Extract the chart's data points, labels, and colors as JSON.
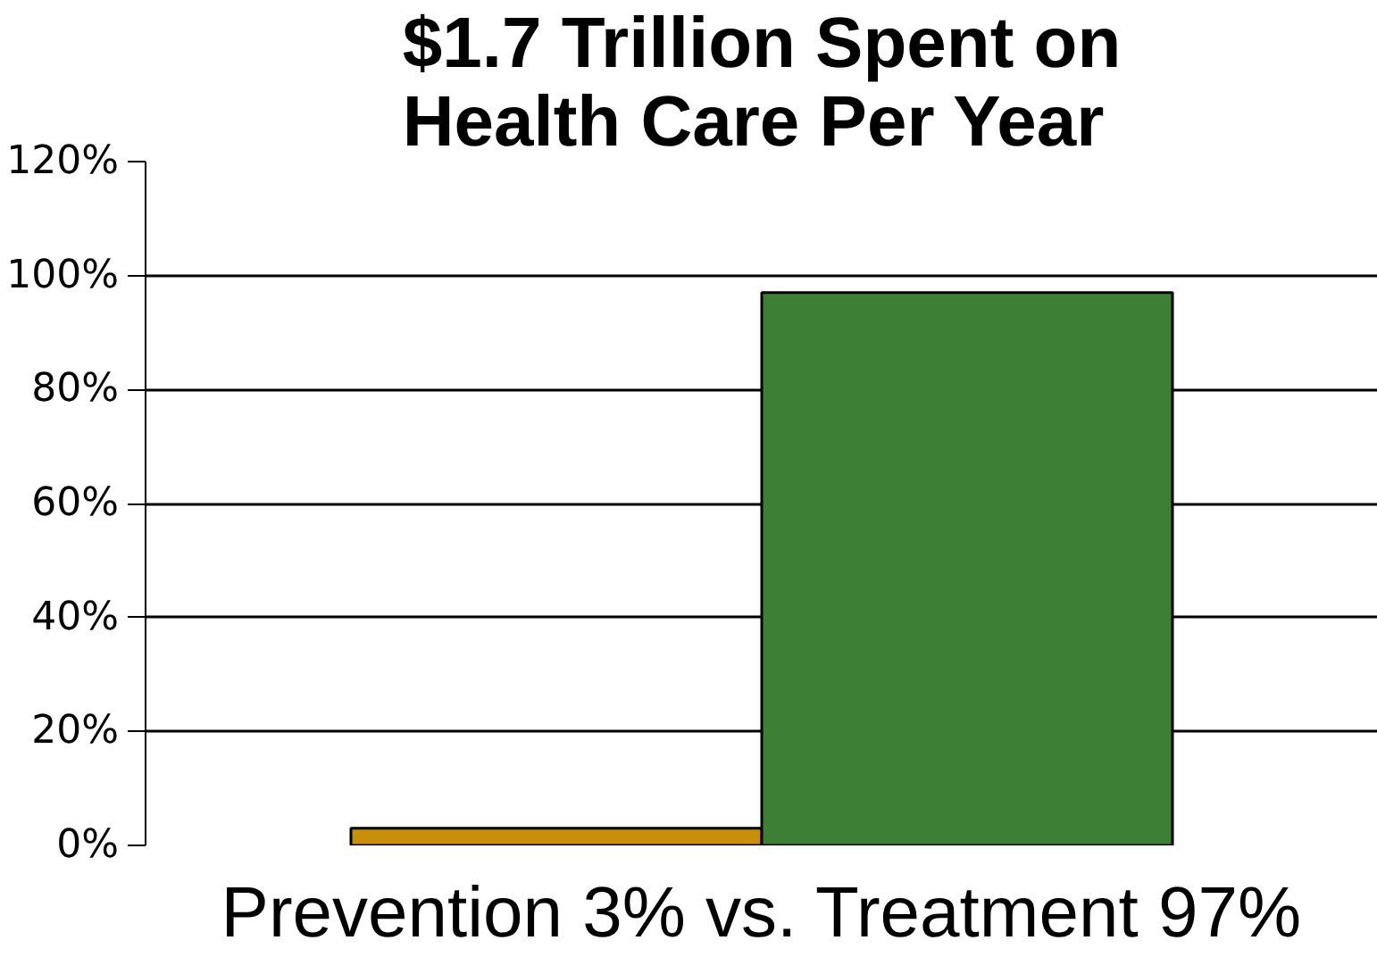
{
  "chart_data": {
    "type": "bar",
    "title": "$1.7 Trillion Spent on Health Care Per Year",
    "xlabel": "Prevention 3% vs. Treatment 97%",
    "categories": [
      null,
      null
    ],
    "values": [
      3,
      97
    ],
    "colors": [
      "#c8900a",
      "#3d7f35"
    ],
    "ylim": [
      0,
      120
    ],
    "yticks": [
      {
        "value": 0,
        "label": "0%"
      },
      {
        "value": 20,
        "label": "20%"
      },
      {
        "value": 40,
        "label": "40%"
      },
      {
        "value": 60,
        "label": "60%"
      },
      {
        "value": 80,
        "label": "80%"
      },
      {
        "value": 100,
        "label": "100%"
      },
      {
        "value": 120,
        "label": "120%"
      }
    ],
    "grid": "y",
    "tick_labels": "y"
  }
}
